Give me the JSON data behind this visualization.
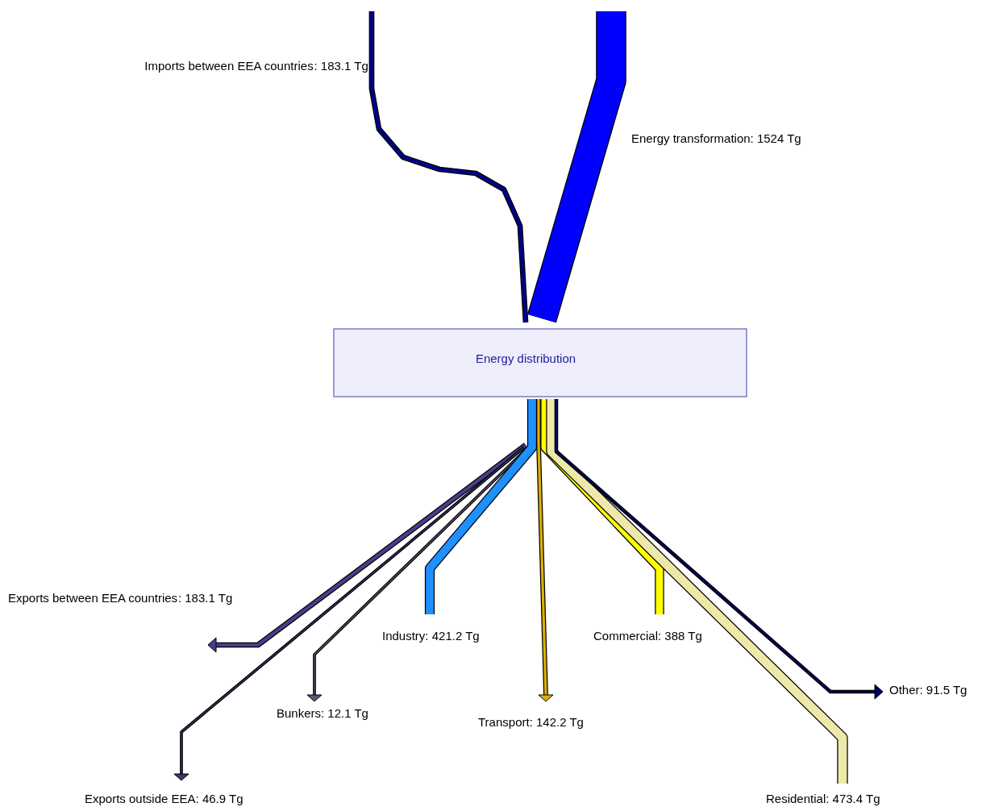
{
  "chart_data": {
    "type": "other",
    "categories": [
      "Imports between EEA countries",
      "Energy transformation",
      "Exports between EEA countries",
      "Bunkers",
      "Exports outside EEA",
      "Industry",
      "Transport",
      "Commercial",
      "Residential",
      "Other"
    ],
    "series": [
      {
        "values": [
          183.1,
          1524,
          null,
          null,
          null,
          null,
          null,
          null,
          null,
          null
        ],
        "colors": [
          "#00008b",
          "#0000ff",
          null,
          null,
          null,
          null,
          null,
          null,
          null,
          null
        ],
        "value_labels": [
          ": 183.1 Tg",
          ": 1524 Tg",
          null,
          null,
          null,
          null,
          null,
          null,
          null,
          null
        ]
      },
      {
        "values": [
          null,
          null,
          183.1,
          12.1,
          46.9,
          421.2,
          142.2,
          388,
          473.4,
          91.5
        ],
        "colors": [
          null,
          null,
          "#483d8b",
          "#5a5a78",
          "#3a3a70",
          "#1e90ff",
          "#e0b000",
          "#ffff00",
          "#eee8aa",
          "#000060"
        ],
        "value_labels": [
          null,
          null,
          ": 183.1 Tg",
          ": 12.1 Tg",
          ": 46.9 Tg",
          ": 421.2 Tg",
          ": 142.2 Tg",
          ": 388 Tg",
          ": 473.4 Tg",
          ": 91.5 Tg"
        ]
      }
    ],
    "annotations": [
      "Energy distribution"
    ]
  }
}
